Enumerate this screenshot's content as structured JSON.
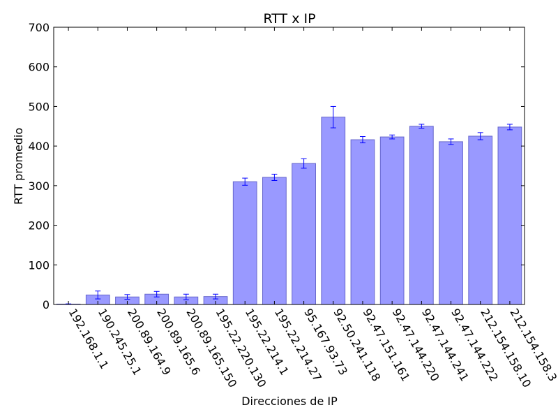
{
  "chart_data": {
    "type": "bar",
    "title": "RTT x IP",
    "xlabel": "Direcciones de IP",
    "ylabel": "RTT promedio",
    "ylim": [
      0,
      700
    ],
    "yticks": [
      0,
      100,
      200,
      300,
      400,
      500,
      600,
      700
    ],
    "grid": false,
    "categories": [
      "192.168.1.1",
      "190.245.25.1",
      "200.89.164.9",
      "200.89.165.6",
      "200.89.165.150",
      "195.22.220.130",
      "195.22.214.1",
      "195.22.214.27",
      "95.167.93.73",
      "92.50.241.118",
      "92.47.151.161",
      "92.47.144.220",
      "92.47.144.241",
      "92.47.144.222",
      "212.154.158.10",
      "212.154.158.3"
    ],
    "values": [
      1,
      24,
      19,
      26,
      19,
      20,
      310,
      321,
      356,
      473,
      416,
      423,
      450,
      411,
      425,
      448
    ],
    "errors": [
      0.5,
      10,
      6,
      7,
      7,
      6,
      9,
      8,
      12,
      27,
      8,
      5,
      5,
      7,
      9,
      7
    ],
    "colors": {
      "bar_fill": "#9999ff",
      "bar_edge": "#6666cc",
      "errorbar": "#0000ff"
    }
  }
}
